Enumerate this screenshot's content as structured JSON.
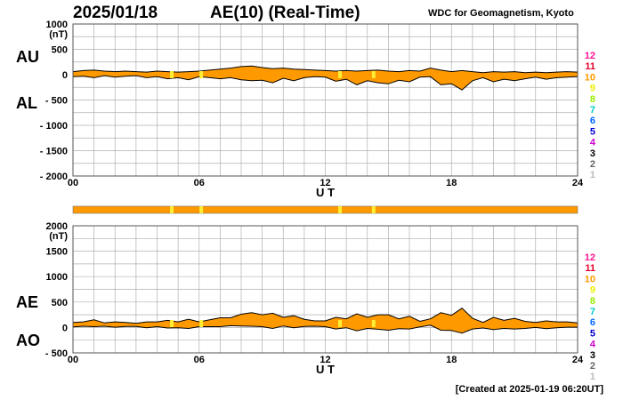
{
  "header": {
    "date": "2025/01/18",
    "index_title": "AE(10) (Real-Time)",
    "center": "WDC for Geomagnetism, Kyoto"
  },
  "footer": {
    "created": "[Created at 2025-01-19 06:20UT]"
  },
  "colors": {
    "fill": "#ff9900",
    "stations_bar": "#ff9900",
    "highlight": "#ffee33",
    "grid": "#b0b0b0"
  },
  "station_scale": {
    "labels": [
      "12",
      "11",
      "10",
      "9",
      "8",
      "7",
      "6",
      "5",
      "4",
      "3",
      "2",
      "1"
    ],
    "colors": [
      "#ff1493",
      "#e8002a",
      "#ff9900",
      "#eeee00",
      "#99ee00",
      "#00cccc",
      "#0066ff",
      "#0000cc",
      "#cc00cc",
      "#000000",
      "#666666",
      "#bbbbbb"
    ]
  },
  "chart_data": [
    {
      "type": "area",
      "panel": "AU/AL",
      "series_labels": [
        "AU",
        "AL"
      ],
      "units": "(nT)",
      "xlabel": "U T",
      "xlim": [
        0,
        24
      ],
      "x_ticks": [
        "00",
        "06",
        "12",
        "18",
        "24"
      ],
      "ylim": [
        -2000,
        1000
      ],
      "y_ticks": [
        "1000",
        "500",
        "0",
        "- 500",
        "- 1000",
        "- 1500",
        "- 2000"
      ],
      "grid": true,
      "x": [
        0,
        0.5,
        1,
        1.5,
        2,
        2.5,
        3,
        3.5,
        4,
        4.5,
        5,
        5.5,
        6,
        6.5,
        7,
        7.5,
        8,
        8.5,
        9,
        9.5,
        10,
        10.5,
        11,
        11.5,
        12,
        12.5,
        13,
        13.5,
        14,
        14.5,
        15,
        15.5,
        16,
        16.5,
        17,
        17.5,
        18,
        18.5,
        19,
        19.5,
        20,
        20.5,
        21,
        21.5,
        22,
        22.5,
        23,
        23.5,
        24
      ],
      "upper": [
        60,
        80,
        90,
        70,
        60,
        70,
        60,
        50,
        70,
        60,
        50,
        60,
        70,
        90,
        110,
        130,
        160,
        170,
        140,
        120,
        130,
        110,
        100,
        90,
        80,
        70,
        80,
        70,
        80,
        90,
        70,
        60,
        80,
        70,
        130,
        90,
        60,
        80,
        60,
        40,
        60,
        50,
        60,
        40,
        50,
        40,
        50,
        60,
        50
      ],
      "lower": [
        -40,
        -30,
        -60,
        -20,
        -50,
        -30,
        -20,
        -60,
        -40,
        -80,
        -60,
        -100,
        -40,
        -60,
        -80,
        -60,
        -100,
        -120,
        -110,
        -160,
        -70,
        -120,
        -60,
        -40,
        -50,
        -130,
        -90,
        -200,
        -120,
        -160,
        -180,
        -110,
        -140,
        -50,
        -40,
        -200,
        -180,
        -300,
        -120,
        -60,
        -140,
        -90,
        -120,
        -80,
        -50,
        -90,
        -60,
        -50,
        -40
      ]
    },
    {
      "type": "area",
      "panel": "AE/AO",
      "series_labels": [
        "AE",
        "AO"
      ],
      "units": "(nT)",
      "xlabel": "U T",
      "xlim": [
        0,
        24
      ],
      "x_ticks": [
        "00",
        "06",
        "12",
        "18",
        "24"
      ],
      "ylim": [
        -500,
        2000
      ],
      "y_ticks": [
        "2000",
        "1500",
        "1000",
        "500",
        "0",
        "- 500"
      ],
      "grid": true,
      "x": [
        0,
        0.5,
        1,
        1.5,
        2,
        2.5,
        3,
        3.5,
        4,
        4.5,
        5,
        5.5,
        6,
        6.5,
        7,
        7.5,
        8,
        8.5,
        9,
        9.5,
        10,
        10.5,
        11,
        11.5,
        12,
        12.5,
        13,
        13.5,
        14,
        14.5,
        15,
        15.5,
        16,
        16.5,
        17,
        17.5,
        18,
        18.5,
        19,
        19.5,
        20,
        20.5,
        21,
        21.5,
        22,
        22.5,
        23,
        23.5,
        24
      ],
      "upper": [
        100,
        110,
        150,
        90,
        110,
        100,
        80,
        110,
        110,
        140,
        110,
        160,
        110,
        150,
        190,
        190,
        260,
        290,
        250,
        280,
        200,
        230,
        160,
        130,
        130,
        200,
        170,
        270,
        200,
        250,
        250,
        170,
        220,
        120,
        170,
        290,
        240,
        380,
        180,
        100,
        200,
        140,
        180,
        120,
        100,
        130,
        110,
        110,
        90
      ],
      "lower": [
        10,
        25,
        15,
        25,
        5,
        20,
        20,
        -5,
        15,
        -10,
        -5,
        -20,
        15,
        15,
        15,
        35,
        30,
        25,
        15,
        -20,
        30,
        -5,
        20,
        25,
        15,
        -30,
        -5,
        -65,
        -20,
        -35,
        -55,
        -25,
        -30,
        10,
        45,
        -55,
        -60,
        -110,
        -30,
        -10,
        -40,
        -20,
        -30,
        -20,
        0,
        -25,
        -5,
        5,
        5
      ]
    }
  ],
  "station_bar": {
    "highlights": [
      4.7,
      6.1,
      12.7,
      14.3
    ]
  }
}
